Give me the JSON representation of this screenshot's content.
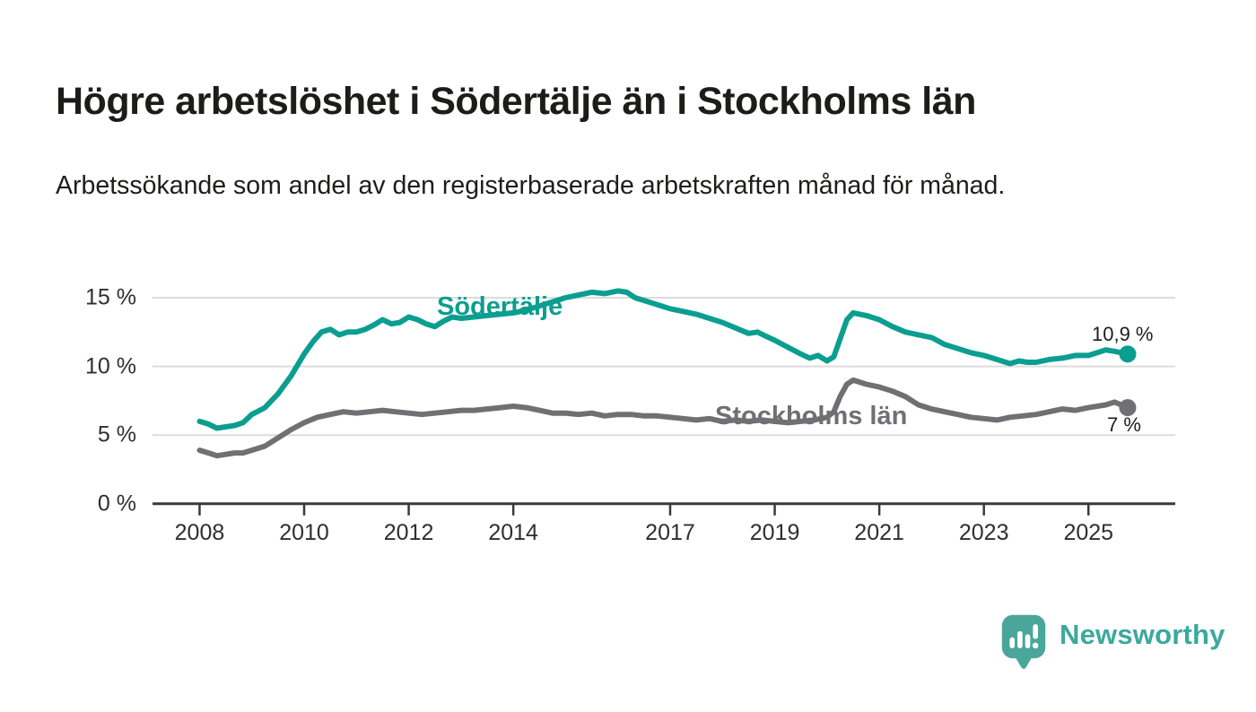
{
  "header": {
    "title": "Högre arbetslöshet i Södertälje än i Stockholms län",
    "subtitle": "Arbetssökande som andel av den registerbaserade arbetskraften månad för månad."
  },
  "chart_data": {
    "type": "line",
    "x_unit": "year",
    "y_unit": "percent",
    "grid": "horizontal",
    "legend_position": "inline-labels",
    "x_ticks": [
      "2008",
      "2010",
      "2012",
      "2014",
      "2017",
      "2019",
      "2021",
      "2023",
      "2025"
    ],
    "x_tick_years": [
      2008,
      2010,
      2012,
      2014,
      2017,
      2019,
      2021,
      2023,
      2025
    ],
    "y_ticks": [
      0,
      5,
      10,
      15
    ],
    "y_tick_labels": [
      "0 %",
      "5 %",
      "10 %",
      "15 %"
    ],
    "xlim": [
      2007.1,
      2026.66
    ],
    "ylim": [
      0,
      16.6
    ],
    "colors": {
      "grid": "#dcdcdc",
      "axis": "#3a3a3a",
      "tick_text": "#2f2f2f",
      "value_text": "#1d1d1b"
    },
    "series": [
      {
        "id": "sodertalje",
        "name": "Södertälje",
        "color": "#0b9e90",
        "end_label": "10,9 %",
        "last_value": 10.9,
        "points": [
          [
            2008.0,
            6.0
          ],
          [
            2008.17,
            5.8
          ],
          [
            2008.33,
            5.5
          ],
          [
            2008.5,
            5.6
          ],
          [
            2008.67,
            5.7
          ],
          [
            2008.83,
            5.9
          ],
          [
            2009.0,
            6.5
          ],
          [
            2009.25,
            7.0
          ],
          [
            2009.5,
            8.0
          ],
          [
            2009.75,
            9.3
          ],
          [
            2010.0,
            10.9
          ],
          [
            2010.17,
            11.8
          ],
          [
            2010.33,
            12.5
          ],
          [
            2010.5,
            12.7
          ],
          [
            2010.67,
            12.3
          ],
          [
            2010.83,
            12.5
          ],
          [
            2011.0,
            12.5
          ],
          [
            2011.17,
            12.7
          ],
          [
            2011.33,
            13.0
          ],
          [
            2011.5,
            13.4
          ],
          [
            2011.67,
            13.1
          ],
          [
            2011.83,
            13.2
          ],
          [
            2012.0,
            13.6
          ],
          [
            2012.17,
            13.4
          ],
          [
            2012.33,
            13.1
          ],
          [
            2012.5,
            12.9
          ],
          [
            2012.67,
            13.3
          ],
          [
            2012.83,
            13.6
          ],
          [
            2013.0,
            13.5
          ],
          [
            2013.25,
            13.6
          ],
          [
            2013.5,
            13.7
          ],
          [
            2013.75,
            13.8
          ],
          [
            2014.0,
            13.9
          ],
          [
            2014.25,
            14.1
          ],
          [
            2014.5,
            14.4
          ],
          [
            2014.75,
            14.7
          ],
          [
            2015.0,
            15.0
          ],
          [
            2015.25,
            15.2
          ],
          [
            2015.5,
            15.4
          ],
          [
            2015.75,
            15.3
          ],
          [
            2016.0,
            15.5
          ],
          [
            2016.17,
            15.4
          ],
          [
            2016.33,
            15.0
          ],
          [
            2016.5,
            14.8
          ],
          [
            2016.75,
            14.5
          ],
          [
            2017.0,
            14.2
          ],
          [
            2017.25,
            14.0
          ],
          [
            2017.5,
            13.8
          ],
          [
            2017.75,
            13.5
          ],
          [
            2018.0,
            13.2
          ],
          [
            2018.25,
            12.8
          ],
          [
            2018.5,
            12.4
          ],
          [
            2018.67,
            12.5
          ],
          [
            2018.83,
            12.2
          ],
          [
            2019.0,
            11.9
          ],
          [
            2019.25,
            11.4
          ],
          [
            2019.5,
            10.9
          ],
          [
            2019.67,
            10.6
          ],
          [
            2019.83,
            10.8
          ],
          [
            2020.0,
            10.4
          ],
          [
            2020.13,
            10.7
          ],
          [
            2020.25,
            12.0
          ],
          [
            2020.38,
            13.4
          ],
          [
            2020.5,
            13.9
          ],
          [
            2020.75,
            13.7
          ],
          [
            2021.0,
            13.4
          ],
          [
            2021.25,
            12.9
          ],
          [
            2021.5,
            12.5
          ],
          [
            2021.75,
            12.3
          ],
          [
            2022.0,
            12.1
          ],
          [
            2022.25,
            11.6
          ],
          [
            2022.5,
            11.3
          ],
          [
            2022.75,
            11.0
          ],
          [
            2023.0,
            10.8
          ],
          [
            2023.25,
            10.5
          ],
          [
            2023.5,
            10.2
          ],
          [
            2023.67,
            10.4
          ],
          [
            2023.83,
            10.3
          ],
          [
            2024.0,
            10.3
          ],
          [
            2024.25,
            10.5
          ],
          [
            2024.5,
            10.6
          ],
          [
            2024.75,
            10.8
          ],
          [
            2025.0,
            10.8
          ],
          [
            2025.17,
            11.0
          ],
          [
            2025.33,
            11.2
          ],
          [
            2025.5,
            11.1
          ],
          [
            2025.75,
            10.9
          ]
        ]
      },
      {
        "id": "stockholms-lan",
        "name": "Stockholms län",
        "color": "#6f6f74",
        "end_label": "7 %",
        "last_value": 7.0,
        "points": [
          [
            2008.0,
            3.9
          ],
          [
            2008.17,
            3.7
          ],
          [
            2008.33,
            3.5
          ],
          [
            2008.5,
            3.6
          ],
          [
            2008.67,
            3.7
          ],
          [
            2008.83,
            3.7
          ],
          [
            2009.0,
            3.9
          ],
          [
            2009.25,
            4.2
          ],
          [
            2009.5,
            4.8
          ],
          [
            2009.75,
            5.4
          ],
          [
            2010.0,
            5.9
          ],
          [
            2010.25,
            6.3
          ],
          [
            2010.5,
            6.5
          ],
          [
            2010.75,
            6.7
          ],
          [
            2011.0,
            6.6
          ],
          [
            2011.25,
            6.7
          ],
          [
            2011.5,
            6.8
          ],
          [
            2011.75,
            6.7
          ],
          [
            2012.0,
            6.6
          ],
          [
            2012.25,
            6.5
          ],
          [
            2012.5,
            6.6
          ],
          [
            2012.75,
            6.7
          ],
          [
            2013.0,
            6.8
          ],
          [
            2013.25,
            6.8
          ],
          [
            2013.5,
            6.9
          ],
          [
            2013.75,
            7.0
          ],
          [
            2014.0,
            7.1
          ],
          [
            2014.25,
            7.0
          ],
          [
            2014.5,
            6.8
          ],
          [
            2014.75,
            6.6
          ],
          [
            2015.0,
            6.6
          ],
          [
            2015.25,
            6.5
          ],
          [
            2015.5,
            6.6
          ],
          [
            2015.75,
            6.4
          ],
          [
            2016.0,
            6.5
          ],
          [
            2016.25,
            6.5
          ],
          [
            2016.5,
            6.4
          ],
          [
            2016.75,
            6.4
          ],
          [
            2017.0,
            6.3
          ],
          [
            2017.25,
            6.2
          ],
          [
            2017.5,
            6.1
          ],
          [
            2017.75,
            6.2
          ],
          [
            2018.0,
            6.0
          ],
          [
            2018.25,
            6.1
          ],
          [
            2018.5,
            6.0
          ],
          [
            2018.75,
            6.1
          ],
          [
            2019.0,
            6.0
          ],
          [
            2019.25,
            5.9
          ],
          [
            2019.5,
            6.0
          ],
          [
            2019.75,
            6.1
          ],
          [
            2020.0,
            6.3
          ],
          [
            2020.13,
            6.7
          ],
          [
            2020.25,
            7.8
          ],
          [
            2020.38,
            8.7
          ],
          [
            2020.5,
            9.0
          ],
          [
            2020.75,
            8.7
          ],
          [
            2021.0,
            8.5
          ],
          [
            2021.25,
            8.2
          ],
          [
            2021.5,
            7.8
          ],
          [
            2021.75,
            7.2
          ],
          [
            2022.0,
            6.9
          ],
          [
            2022.25,
            6.7
          ],
          [
            2022.5,
            6.5
          ],
          [
            2022.75,
            6.3
          ],
          [
            2023.0,
            6.2
          ],
          [
            2023.25,
            6.1
          ],
          [
            2023.5,
            6.3
          ],
          [
            2023.75,
            6.4
          ],
          [
            2024.0,
            6.5
          ],
          [
            2024.25,
            6.7
          ],
          [
            2024.5,
            6.9
          ],
          [
            2024.75,
            6.8
          ],
          [
            2025.0,
            7.0
          ],
          [
            2025.17,
            7.1
          ],
          [
            2025.33,
            7.2
          ],
          [
            2025.5,
            7.4
          ],
          [
            2025.75,
            7.0
          ]
        ]
      }
    ]
  },
  "footer": {
    "brand": "Newsworthy",
    "brand_color": "#3ba99c"
  }
}
